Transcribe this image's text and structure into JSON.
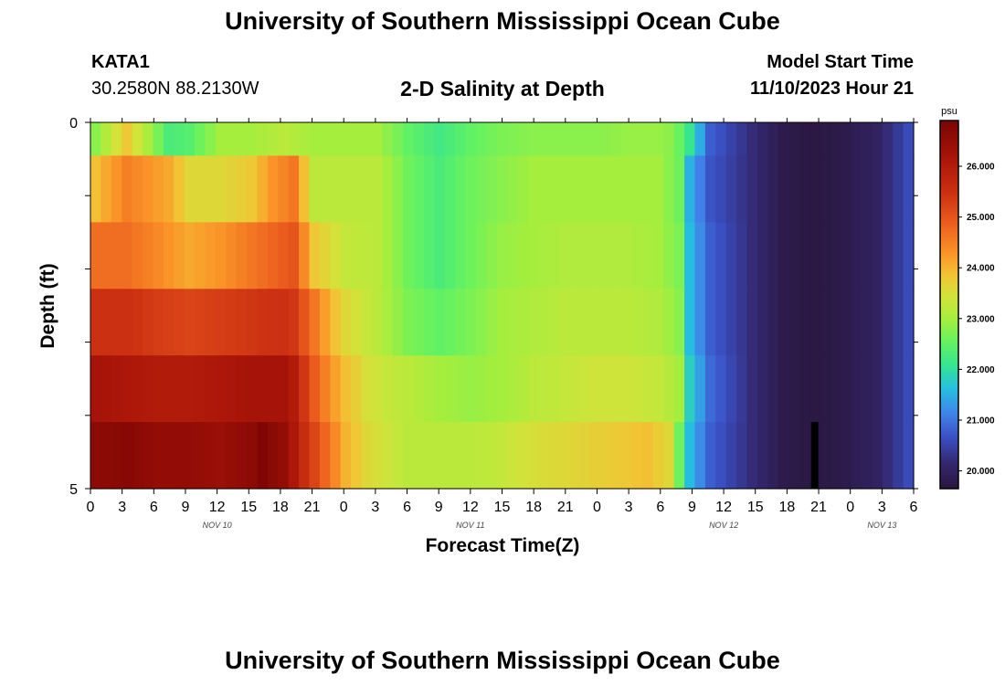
{
  "page": {
    "title": "University of Southern Mississippi Ocean Cube",
    "footer_title": "University of Southern Mississippi Ocean Cube",
    "station": {
      "id": "KATA1",
      "coords": "30.2580N  88.2130W"
    },
    "plot_title": "2-D Salinity at Depth",
    "model_start": {
      "label": "Model Start Time",
      "value": "11/10/2023 Hour 21"
    }
  },
  "chart_data": {
    "type": "heatmap",
    "title": "2-D Salinity at Depth",
    "xlabel": "Forecast Time(Z)",
    "ylabel": "Depth (ft)",
    "x_tick_labels": [
      "0",
      "3",
      "6",
      "9",
      "12",
      "15",
      "18",
      "21",
      "0",
      "3",
      "6",
      "9",
      "12",
      "15",
      "18",
      "21",
      "0",
      "3",
      "6",
      "9",
      "12",
      "15",
      "18",
      "21",
      "0",
      "3",
      "6"
    ],
    "x_hours": [
      0,
      3,
      6,
      9,
      12,
      15,
      18,
      21,
      24,
      27,
      30,
      33,
      36,
      39,
      42,
      45,
      48,
      51,
      54,
      57,
      60,
      63,
      66,
      69,
      72,
      75,
      78
    ],
    "xlim": [
      0,
      78
    ],
    "date_labels": [
      {
        "text": "NOV 10",
        "hour": 12
      },
      {
        "text": "NOV 11",
        "hour": 36
      },
      {
        "text": "NOV 12",
        "hour": 60
      },
      {
        "text": "NOV 13",
        "hour": 75
      }
    ],
    "y_tick_labels": [
      "0",
      "5"
    ],
    "ylim": [
      0,
      5
    ],
    "depth_levels": [
      0,
      1,
      2,
      3,
      4,
      5
    ],
    "colorbar": {
      "unit": "psu",
      "tick_labels": [
        "20.000",
        "21.000",
        "22.000",
        "23.000",
        "24.000",
        "25.000",
        "26.000"
      ],
      "range": [
        19.65,
        26.9
      ]
    },
    "current_time_marker_hour": 69,
    "profiles": [
      {
        "depth_row": 0,
        "hours": [
          0,
          3,
          7,
          9,
          12,
          15,
          18,
          21,
          24,
          27,
          30,
          33,
          36,
          39,
          42,
          45,
          48,
          51,
          54,
          55.5,
          57,
          59,
          63,
          66,
          69,
          72,
          75,
          78
        ],
        "salinity": [
          22.8,
          23.8,
          22.3,
          22.4,
          23.0,
          23.0,
          23.2,
          23.0,
          23.0,
          23.0,
          22.5,
          22.2,
          22.5,
          22.7,
          22.8,
          22.8,
          22.8,
          22.9,
          22.9,
          22.8,
          22.1,
          20.8,
          20.2,
          19.8,
          19.7,
          19.8,
          20.0,
          20.6
        ]
      },
      {
        "depth_row": 1,
        "hours": [
          0,
          3,
          7,
          9,
          12,
          15,
          17,
          19,
          21,
          24,
          27,
          30,
          33,
          36,
          39,
          42,
          45,
          48,
          51,
          54,
          56,
          57,
          59,
          63,
          66,
          69,
          72,
          75,
          78
        ],
        "salinity": [
          23.9,
          24.5,
          24.1,
          23.6,
          23.6,
          23.8,
          24.3,
          24.6,
          23.2,
          23.2,
          23.2,
          22.6,
          22.3,
          22.6,
          22.8,
          23.0,
          23.0,
          23.0,
          23.0,
          23.0,
          22.6,
          21.5,
          20.7,
          20.2,
          19.8,
          19.7,
          19.8,
          20.0,
          20.6
        ]
      },
      {
        "depth_row": 2,
        "hours": [
          0,
          3,
          6,
          9,
          12,
          15,
          18,
          19,
          21,
          24,
          27,
          30,
          33,
          36,
          39,
          42,
          45,
          48,
          51,
          54,
          56,
          57,
          59,
          63,
          66,
          69,
          72,
          75,
          78
        ],
        "salinity": [
          24.7,
          24.7,
          24.4,
          24.1,
          24.3,
          24.6,
          24.9,
          25.0,
          23.8,
          23.3,
          23.2,
          22.6,
          22.3,
          22.6,
          22.9,
          23.0,
          23.1,
          23.1,
          23.1,
          23.0,
          22.7,
          21.6,
          20.8,
          20.2,
          19.8,
          19.7,
          19.8,
          20.0,
          20.6
        ]
      },
      {
        "depth_row": 3,
        "hours": [
          0,
          3,
          6,
          9,
          12,
          15,
          18,
          19,
          21,
          22.5,
          24,
          27,
          30,
          33,
          36,
          39,
          42,
          45,
          48,
          51,
          54,
          56,
          57,
          59,
          63,
          66,
          69,
          72,
          75,
          78
        ],
        "salinity": [
          25.5,
          25.5,
          25.3,
          25.2,
          25.3,
          25.4,
          25.5,
          25.4,
          24.6,
          24.0,
          23.6,
          23.2,
          22.7,
          22.5,
          22.7,
          23.0,
          23.1,
          23.2,
          23.2,
          23.2,
          23.1,
          22.8,
          21.6,
          20.8,
          20.2,
          19.8,
          19.7,
          19.8,
          20.0,
          20.6
        ]
      },
      {
        "depth_row": 4,
        "hours": [
          0,
          3,
          6,
          9,
          12,
          15,
          18,
          19,
          20,
          21,
          22.5,
          24,
          26,
          28,
          30,
          33,
          36,
          39,
          42,
          45,
          48,
          51,
          54,
          56,
          57,
          59,
          63,
          66,
          69,
          72,
          75,
          78
        ],
        "salinity": [
          26.2,
          26.1,
          26.0,
          26.0,
          26.1,
          26.2,
          26.2,
          26.0,
          25.4,
          24.9,
          24.3,
          23.9,
          23.5,
          23.3,
          23.2,
          23.0,
          22.9,
          23.0,
          23.2,
          23.3,
          23.4,
          23.4,
          23.3,
          23.0,
          21.8,
          20.9,
          20.2,
          19.8,
          19.7,
          19.8,
          20.0,
          20.6
        ]
      },
      {
        "depth_row": 5,
        "hours": [
          0,
          3,
          6,
          9,
          12,
          15,
          16,
          18,
          19,
          20,
          21,
          22.5,
          24,
          26,
          28,
          30,
          33,
          36,
          39,
          42,
          45,
          48,
          51,
          53,
          55,
          56,
          57,
          59,
          63,
          66,
          69,
          72,
          75,
          78
        ],
        "salinity": [
          26.6,
          26.7,
          26.5,
          26.5,
          26.4,
          26.6,
          26.8,
          26.5,
          26.1,
          25.6,
          25.2,
          24.6,
          24.0,
          23.6,
          23.4,
          23.2,
          23.2,
          23.2,
          23.3,
          23.5,
          23.6,
          23.7,
          23.8,
          23.9,
          23.6,
          22.6,
          21.6,
          20.8,
          20.2,
          19.8,
          19.7,
          19.8,
          20.0,
          20.6
        ]
      }
    ]
  },
  "colors": {
    "plot_frame": "#000000",
    "background": "#ffffff",
    "time_marker": "#000000"
  }
}
